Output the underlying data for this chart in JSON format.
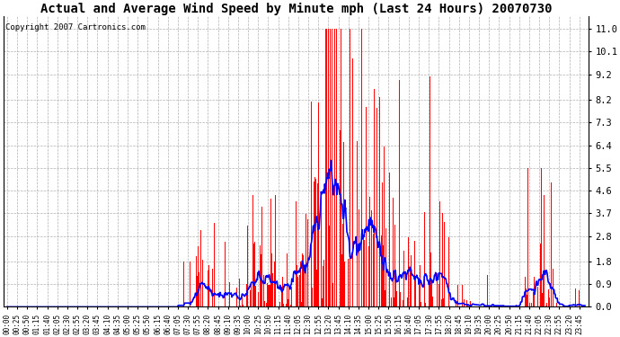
{
  "title": "Actual and Average Wind Speed by Minute mph (Last 24 Hours) 20070730",
  "copyright": "Copyright 2007 Cartronics.com",
  "yticks": [
    0.0,
    0.9,
    1.8,
    2.8,
    3.7,
    4.6,
    5.5,
    6.4,
    7.3,
    8.2,
    9.2,
    10.1,
    11.0
  ],
  "ymin": 0.0,
  "ymax": 11.5,
  "bar_color": "#ff0000",
  "line_color": "#0000ff",
  "bg_color": "#ffffff",
  "grid_color": "#b0b0b0",
  "title_fontsize": 10,
  "copyright_fontsize": 6.5,
  "xtick_fontsize": 5.5,
  "ytick_fontsize": 7.5
}
